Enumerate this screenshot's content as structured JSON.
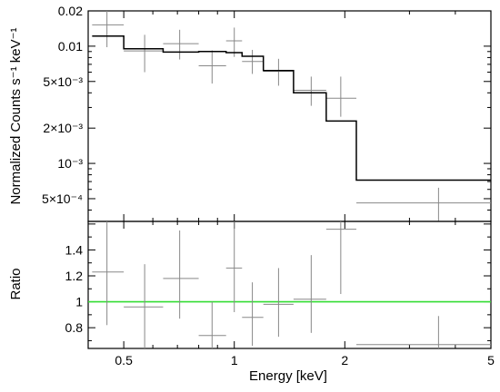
{
  "chart_data": [
    {
      "type": "scatter",
      "panel": "top",
      "ylabel": "Normalized Counts s⁻¹ keV⁻¹",
      "xscale": "log",
      "yscale": "log",
      "xlim": [
        0.4,
        5
      ],
      "ylim": [
        0.00032,
        0.02
      ],
      "yticks": [
        {
          "value": 0.02,
          "label": "0.02"
        },
        {
          "value": 0.01,
          "label": "0.01"
        },
        {
          "value": 0.005,
          "label": "5×10⁻³"
        },
        {
          "value": 0.002,
          "label": "2×10⁻³"
        },
        {
          "value": 0.001,
          "label": "10⁻³"
        },
        {
          "value": 0.0005,
          "label": "5×10⁻⁴"
        }
      ],
      "series": [
        {
          "kind": "data-with-errors",
          "color": "#888888",
          "points": [
            {
              "x": 0.45,
              "y": 0.0152,
              "xlo": 0.41,
              "xhi": 0.5,
              "ylo": 0.0098,
              "yhi": 0.0205
            },
            {
              "x": 0.57,
              "y": 0.0091,
              "xlo": 0.5,
              "xhi": 0.64,
              "ylo": 0.006,
              "yhi": 0.0125
            },
            {
              "x": 0.71,
              "y": 0.0105,
              "xlo": 0.64,
              "xhi": 0.8,
              "ylo": 0.0077,
              "yhi": 0.0138
            },
            {
              "x": 0.87,
              "y": 0.0068,
              "xlo": 0.8,
              "xhi": 0.95,
              "ylo": 0.0048,
              "yhi": 0.0092
            },
            {
              "x": 1.0,
              "y": 0.0111,
              "xlo": 0.95,
              "xhi": 1.05,
              "ylo": 0.0081,
              "yhi": 0.0144
            },
            {
              "x": 1.12,
              "y": 0.0074,
              "xlo": 1.05,
              "xhi": 1.2,
              "ylo": 0.0058,
              "yhi": 0.0093
            },
            {
              "x": 1.32,
              "y": 0.0061,
              "xlo": 1.2,
              "xhi": 1.45,
              "ylo": 0.0046,
              "yhi": 0.0078
            },
            {
              "x": 1.62,
              "y": 0.0042,
              "xlo": 1.45,
              "xhi": 1.78,
              "ylo": 0.0031,
              "yhi": 0.0055
            },
            {
              "x": 1.95,
              "y": 0.0036,
              "xlo": 1.78,
              "xhi": 2.15,
              "ylo": 0.0025,
              "yhi": 0.0055
            },
            {
              "x": 3.6,
              "y": 0.00046,
              "xlo": 2.15,
              "xhi": 5.0,
              "ylo": 0.00032,
              "yhi": 0.00062
            }
          ]
        },
        {
          "kind": "model-step",
          "color": "#000000",
          "edges": [
            0.41,
            0.5,
            0.64,
            0.8,
            0.95,
            1.05,
            1.2,
            1.45,
            1.78,
            2.15,
            5.0
          ],
          "values": [
            0.0122,
            0.0095,
            0.0089,
            0.009,
            0.0088,
            0.0082,
            0.0062,
            0.004,
            0.0023,
            0.00072
          ]
        }
      ]
    },
    {
      "type": "scatter",
      "panel": "bottom",
      "xlabel": "Energy [keV]",
      "ylabel": "Ratio",
      "xscale": "log",
      "xlim": [
        0.4,
        5
      ],
      "ylim": [
        0.64,
        1.62
      ],
      "xticks": [
        {
          "value": 0.5,
          "label": "0.5"
        },
        {
          "value": 1,
          "label": "1"
        },
        {
          "value": 2,
          "label": "2"
        },
        {
          "value": 5,
          "label": "5"
        }
      ],
      "yticks": [
        {
          "value": 1.4,
          "label": "1.4"
        },
        {
          "value": 1.2,
          "label": "1.2"
        },
        {
          "value": 1.0,
          "label": "1"
        },
        {
          "value": 0.8,
          "label": "0.8"
        }
      ],
      "reference_line": {
        "y": 1.0,
        "color": "#33dd33"
      },
      "series": [
        {
          "kind": "data-with-errors",
          "color": "#888888",
          "points": [
            {
              "x": 0.45,
              "y": 1.23,
              "xlo": 0.41,
              "xhi": 0.5,
              "ylo": 0.82,
              "yhi": 1.64
            },
            {
              "x": 0.57,
              "y": 0.96,
              "xlo": 0.5,
              "xhi": 0.64,
              "ylo": 0.64,
              "yhi": 1.29
            },
            {
              "x": 0.71,
              "y": 1.18,
              "xlo": 0.64,
              "xhi": 0.8,
              "ylo": 0.87,
              "yhi": 1.55
            },
            {
              "x": 0.87,
              "y": 0.74,
              "xlo": 0.8,
              "xhi": 0.95,
              "ylo": 0.64,
              "yhi": 1.0
            },
            {
              "x": 1.0,
              "y": 1.26,
              "xlo": 0.95,
              "xhi": 1.05,
              "ylo": 0.92,
              "yhi": 1.62
            },
            {
              "x": 1.12,
              "y": 0.88,
              "xlo": 1.05,
              "xhi": 1.2,
              "ylo": 0.66,
              "yhi": 1.15
            },
            {
              "x": 1.32,
              "y": 0.98,
              "xlo": 1.2,
              "xhi": 1.45,
              "ylo": 0.73,
              "yhi": 1.26
            },
            {
              "x": 1.62,
              "y": 1.02,
              "xlo": 1.45,
              "xhi": 1.78,
              "ylo": 0.76,
              "yhi": 1.36
            },
            {
              "x": 1.95,
              "y": 1.56,
              "xlo": 1.78,
              "xhi": 2.15,
              "ylo": 1.06,
              "yhi": 1.62
            },
            {
              "x": 3.6,
              "y": 0.67,
              "xlo": 2.15,
              "xhi": 5.0,
              "ylo": 0.64,
              "yhi": 0.89
            }
          ]
        }
      ]
    }
  ]
}
